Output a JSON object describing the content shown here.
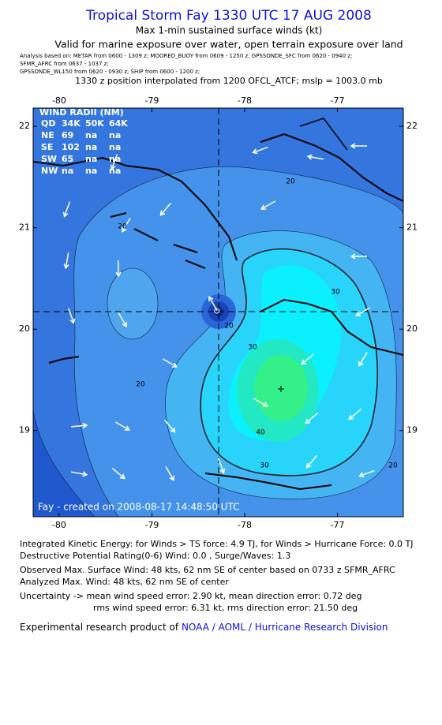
{
  "header": {
    "title": "Tropical Storm Fay 1330 UTC 17 AUG 2008",
    "subtitle": "Max 1-min sustained surface winds (kt)",
    "valid": "Valid for marine exposure over water, open terrain exposure over land",
    "analysis_1": "Analysis based on:  METAR from 0600 - 1309 z;  MOORED_BUOY from 0609 - 1250 z;  GPSSONDE_SFC from 0620 - 0940 z;",
    "analysis_2": "SFMR_AFRC from 0637 - 1037 z;",
    "analysis_3": "GPSSONDE_WL150 from 0620 - 0930 z;  SHIP from 0600 - 1200 z;",
    "position": "1330 z position interpolated from 1200 OFCL_ATCF; mslp = 1003.0 mb"
  },
  "map": {
    "xlim": [
      -80.28,
      -76.29
    ],
    "ylim": [
      18.15,
      22.18
    ],
    "xticks": [
      -80,
      -79,
      -78,
      -77
    ],
    "yticks": [
      19,
      20,
      21,
      22
    ],
    "center": [
      -78.3,
      20.18
    ],
    "wind_radii": {
      "title": "WIND RADII (NM)",
      "header": [
        "QD",
        "34K",
        "50K",
        "64K"
      ],
      "rows": [
        [
          "NE",
          "69",
          "na",
          "na"
        ],
        [
          "SE",
          "102",
          "na",
          "na"
        ],
        [
          "SW",
          "65",
          "na",
          "na"
        ],
        [
          "NW",
          "na",
          "na",
          "na"
        ]
      ]
    },
    "contour_labels": [
      "20",
      "20",
      "20",
      "20",
      "20",
      "30",
      "30",
      "30",
      "40"
    ],
    "credit": "Fay - created on 2008-08-17 14:48:50 UTC"
  },
  "footer": {
    "ike": "Integrated Kinetic Energy:  for Winds > TS force: 4.9 TJ,  for Winds > Hurricane Force: 0.0 TJ",
    "dpr": "Destructive Potential Rating(0-6)   Wind: 0.0 , Surge/Waves: 1.3",
    "observed": "Observed Max. Surface Wind: 48 kts, 62 nm SE of center based on 0733 z SFMR_AFRC",
    "analyzed": "Analyzed Max. Wind: 48 kts, 62 nm SE of center",
    "uncertainty_1": "Uncertainty -> mean wind speed error: 2.90 kt,   mean direction error: 0.72 deg",
    "uncertainty_2": "rms wind speed error: 6.31 kt,   rms direction error: 21.50 deg",
    "product": "Experimental research product of",
    "org": "NOAA / AOML / Hurricane Research Division"
  }
}
